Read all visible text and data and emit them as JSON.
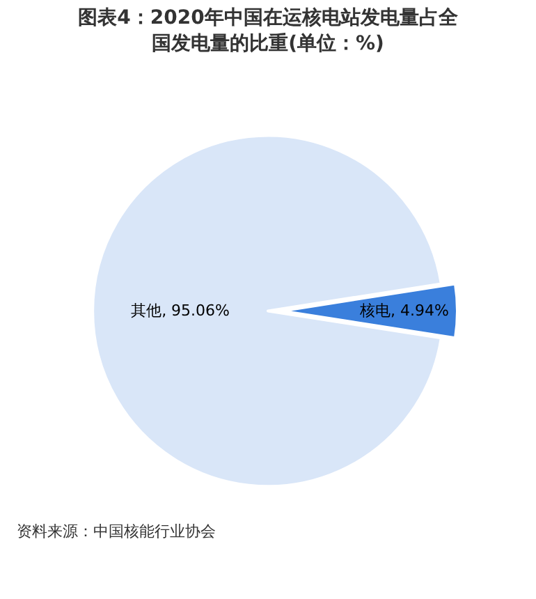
{
  "chart_data": {
    "type": "pie",
    "title": "图表4：2020年中国在运核电站发电量占全国发电量的比重(单位：%)",
    "categories": [
      "核电",
      "其他"
    ],
    "values": [
      4.94,
      95.06
    ],
    "colors": [
      "#3a7fdc",
      "#d9e6f8"
    ],
    "value_labels": [
      "4.94%",
      "95.06%"
    ],
    "legend": false,
    "annotations": [
      "资料来源：中国核能行业协会"
    ]
  }
}
